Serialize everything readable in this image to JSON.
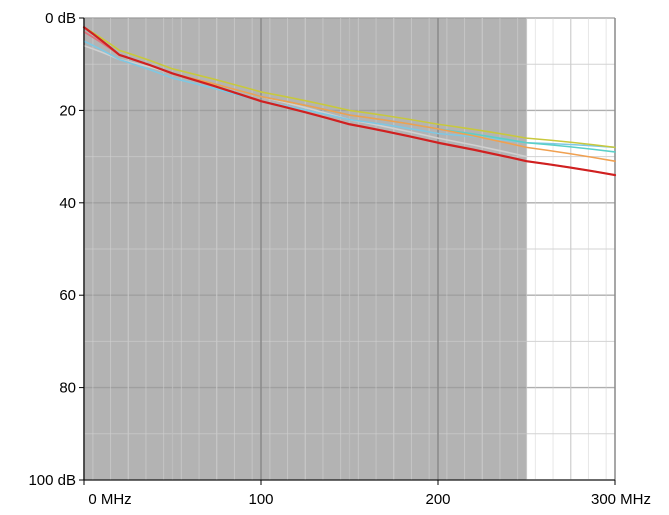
{
  "chart_data": {
    "type": "line",
    "title": "",
    "xlabel": "",
    "ylabel": "",
    "x_unit_label": "MHz",
    "y_unit_label": "dB",
    "xlim": [
      0,
      300
    ],
    "ylim": [
      0,
      100
    ],
    "y_inverted": true,
    "x_ticks": [
      {
        "value": 0,
        "label": "0 MHz"
      },
      {
        "value": 100,
        "label": "100"
      },
      {
        "value": 200,
        "label": "200"
      },
      {
        "value": 300,
        "label": "300 MHz"
      }
    ],
    "y_ticks": [
      {
        "value": 0,
        "label": "0 dB"
      },
      {
        "value": 20,
        "label": "20"
      },
      {
        "value": 40,
        "label": "40"
      },
      {
        "value": 60,
        "label": "60"
      },
      {
        "value": 80,
        "label": "80"
      },
      {
        "value": 100,
        "label": "100 dB"
      }
    ],
    "grid": true,
    "shaded_region": {
      "x_from": 0,
      "x_to": 250,
      "color": "#b3b3b3"
    },
    "series": [
      {
        "color": "#d0d0d0",
        "x": [
          0,
          20,
          50,
          100,
          150,
          200,
          250
        ],
        "y": [
          6,
          9,
          12,
          17,
          22,
          26,
          30
        ]
      },
      {
        "color": "#7ec8e3",
        "x": [
          0,
          20,
          50,
          100,
          150,
          200,
          250,
          300
        ],
        "y": [
          5,
          9,
          13,
          18,
          22,
          25,
          27,
          28
        ]
      },
      {
        "color": "#5ad0c8",
        "x": [
          0,
          20,
          50,
          100,
          150,
          200,
          250,
          300
        ],
        "y": [
          3,
          8,
          12,
          17,
          21,
          24,
          27,
          29
        ]
      },
      {
        "color": "#c8c83c",
        "x": [
          0,
          20,
          50,
          100,
          150,
          200,
          250,
          300
        ],
        "y": [
          2,
          7,
          11,
          16,
          20,
          23,
          26,
          28
        ]
      },
      {
        "color": "#f0a050",
        "x": [
          0,
          20,
          50,
          100,
          150,
          200,
          250,
          300
        ],
        "y": [
          3,
          8,
          12,
          17,
          21,
          24,
          28,
          31
        ]
      },
      {
        "color": "#e07080",
        "x": [
          0,
          20,
          50,
          100,
          150,
          200,
          250,
          300
        ],
        "y": [
          3,
          8,
          12,
          18,
          23,
          27,
          31,
          34
        ]
      },
      {
        "color": "#d02020",
        "x": [
          0,
          20,
          50,
          100,
          150,
          200,
          250,
          300
        ],
        "y": [
          2,
          8,
          12,
          18,
          23,
          27,
          31,
          34
        ]
      }
    ]
  }
}
